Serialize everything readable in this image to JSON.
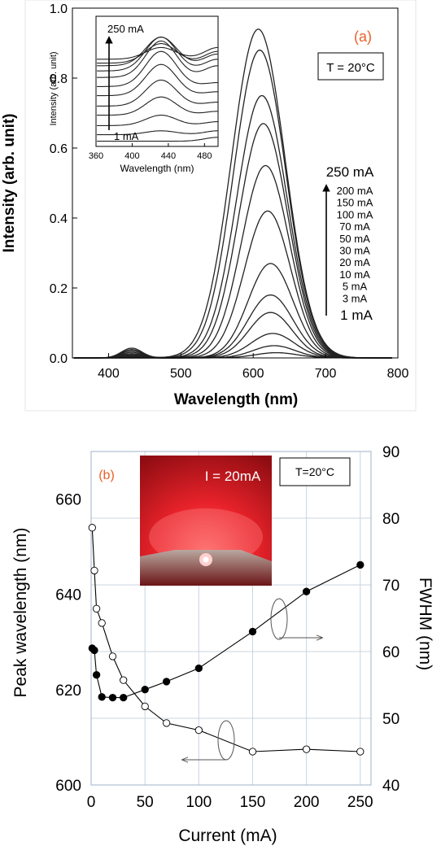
{
  "chart_data": [
    {
      "panel": "(a)",
      "type": "line",
      "xlabel": "Wavelength (nm)",
      "ylabel": "Intensity (arb. unit)",
      "xlim": [
        350,
        800
      ],
      "ylim": [
        0,
        1.0
      ],
      "x_ticks": [
        400,
        500,
        600,
        700,
        800
      ],
      "y_ticks": [
        0.0,
        0.2,
        0.4,
        0.6,
        0.8,
        1.0
      ],
      "y_tick_labels": [
        "0.0",
        "0.2",
        "0.4",
        "0.6",
        "0.8",
        "1.0"
      ],
      "annotation": "T = 20°C",
      "series_label_top": "250 mA",
      "series_labels": [
        "200 mA",
        "150 mA",
        "100 mA",
        "70 mA",
        "50 mA",
        "30 mA",
        "20 mA",
        "10 mA",
        "5 mA",
        "3 mA"
      ],
      "series_label_bottom": "1 mA",
      "series": [
        {
          "name": "1 mA",
          "peak_x": 632,
          "peak_y": 0.015,
          "width": 29,
          "blue_peak": 0.0
        },
        {
          "name": "3 mA",
          "peak_x": 629,
          "peak_y": 0.035,
          "width": 29,
          "blue_peak": 0.0
        },
        {
          "name": "5 mA",
          "peak_x": 627,
          "peak_y": 0.07,
          "width": 30,
          "blue_peak": 0.0
        },
        {
          "name": "10 mA",
          "peak_x": 624,
          "peak_y": 0.13,
          "width": 30,
          "blue_peak": 0.002
        },
        {
          "name": "20 mA",
          "peak_x": 624,
          "peak_y": 0.18,
          "width": 31,
          "blue_peak": 0.004
        },
        {
          "name": "30 mA",
          "peak_x": 624,
          "peak_y": 0.27,
          "width": 31,
          "blue_peak": 0.006
        },
        {
          "name": "50 mA",
          "peak_x": 620,
          "peak_y": 0.42,
          "width": 32,
          "blue_peak": 0.009
        },
        {
          "name": "70 mA",
          "peak_x": 617,
          "peak_y": 0.55,
          "width": 33,
          "blue_peak": 0.012
        },
        {
          "name": "100 mA",
          "peak_x": 614,
          "peak_y": 0.67,
          "width": 34,
          "blue_peak": 0.016
        },
        {
          "name": "150 mA",
          "peak_x": 612,
          "peak_y": 0.75,
          "width": 35,
          "blue_peak": 0.02
        },
        {
          "name": "200 mA",
          "peak_x": 609,
          "peak_y": 0.88,
          "width": 36,
          "blue_peak": 0.024
        },
        {
          "name": "250 mA",
          "peak_x": 607,
          "peak_y": 0.94,
          "width": 37,
          "blue_peak": 0.028
        }
      ],
      "inset": {
        "xlabel": "Wavelength (nm)",
        "ylabel": "Intensity (arb. unit)",
        "xlim": [
          360,
          495
        ],
        "x_ticks": [
          360,
          400,
          440,
          480
        ],
        "label_top": "250 mA",
        "label_bottom": "1 mA",
        "series": [
          {
            "name": "1 mA",
            "offset": 0.04,
            "amp": 0.0
          },
          {
            "name": "3 mA",
            "offset": 0.09,
            "amp": 0.03
          },
          {
            "name": "5 mA",
            "offset": 0.16,
            "amp": 0.08
          },
          {
            "name": "10 mA",
            "offset": 0.24,
            "amp": 0.14
          },
          {
            "name": "20 mA",
            "offset": 0.31,
            "amp": 0.2
          },
          {
            "name": "30 mA",
            "offset": 0.39,
            "amp": 0.24
          },
          {
            "name": "50 mA",
            "offset": 0.46,
            "amp": 0.27
          },
          {
            "name": "70 mA",
            "offset": 0.53,
            "amp": 0.28
          },
          {
            "name": "100 mA",
            "offset": 0.58,
            "amp": 0.26
          },
          {
            "name": "150 mA",
            "offset": 0.62,
            "amp": 0.22
          },
          {
            "name": "200 mA",
            "offset": 0.64,
            "amp": 0.15
          },
          {
            "name": "250 mA",
            "offset": 0.67,
            "amp": 0.09
          }
        ]
      }
    },
    {
      "panel": "(b)",
      "type": "scatter",
      "xlabel": "Current (mA)",
      "ylabel": "Peak wavelength (nm)",
      "y2label": "FWHM (nm)",
      "xlim": [
        0,
        260
      ],
      "ylim": [
        600,
        670
      ],
      "y2lim": [
        40,
        90
      ],
      "x_ticks": [
        0,
        50,
        100,
        150,
        200,
        250
      ],
      "y_ticks": [
        600,
        620,
        640,
        660
      ],
      "y2_ticks": [
        40,
        50,
        60,
        70,
        80,
        90
      ],
      "annotation": "T=20°C",
      "photo_label": "I = 20mA",
      "series": [
        {
          "name": "Peak wavelength",
          "axis": "left",
          "marker": "open",
          "x": [
            1,
            3,
            5,
            10,
            20,
            30,
            50,
            70,
            100,
            150,
            200,
            250
          ],
          "y": [
            654,
            645,
            637,
            634,
            627,
            622,
            616.5,
            613,
            611.5,
            607,
            607.5,
            607
          ]
        },
        {
          "name": "FWHM",
          "axis": "right",
          "marker": "filled",
          "x": [
            1,
            3,
            5,
            10,
            20,
            30,
            50,
            70,
            100,
            150,
            200,
            250
          ],
          "y": [
            60.5,
            60.2,
            56.5,
            53.2,
            53.1,
            53.1,
            54.3,
            55.5,
            57.5,
            63,
            69,
            73
          ]
        }
      ]
    }
  ]
}
